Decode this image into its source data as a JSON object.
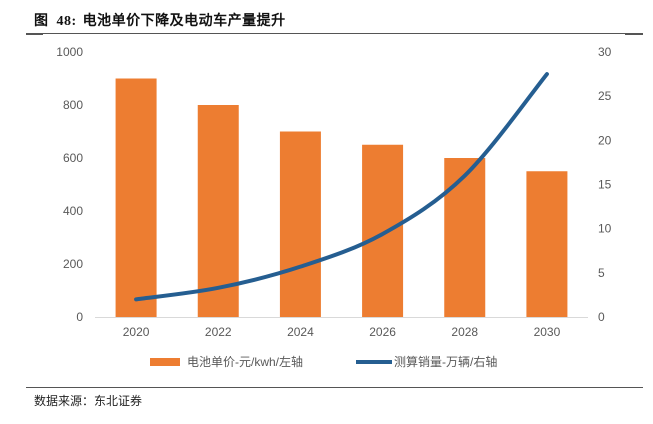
{
  "figure": {
    "label": "图",
    "number": "48:",
    "title": "电池单价下降及电动车产量提升",
    "source": "数据来源：东北证券"
  },
  "colors": {
    "bar": "#ED7D31",
    "line": "#255E91",
    "axis_text": "#595959",
    "baseline": "#D9D9D9"
  },
  "chart_data": {
    "type": "bar+line",
    "title": "电池单价下降及电动车产量提升",
    "categories": [
      "2020",
      "2022",
      "2024",
      "2026",
      "2028",
      "2030"
    ],
    "series": [
      {
        "name": "电池单价-元/kwh/左轴",
        "type": "bar",
        "axis": "left",
        "values": [
          900,
          800,
          700,
          650,
          600,
          550
        ]
      },
      {
        "name": "测算销量-万辆/右轴",
        "type": "line",
        "axis": "right",
        "smooth": true,
        "values": [
          2.0,
          3.3,
          5.7,
          9.4,
          16.0,
          27.5
        ]
      }
    ],
    "y_left": {
      "min": 0,
      "max": 1000,
      "ticks": [
        "0",
        "200",
        "400",
        "600",
        "800",
        "1000"
      ]
    },
    "y_right": {
      "min": 0,
      "max": 30,
      "ticks": [
        "0",
        "5",
        "10",
        "15",
        "20",
        "25",
        "30"
      ]
    },
    "grid": false,
    "legend": "bottom"
  }
}
